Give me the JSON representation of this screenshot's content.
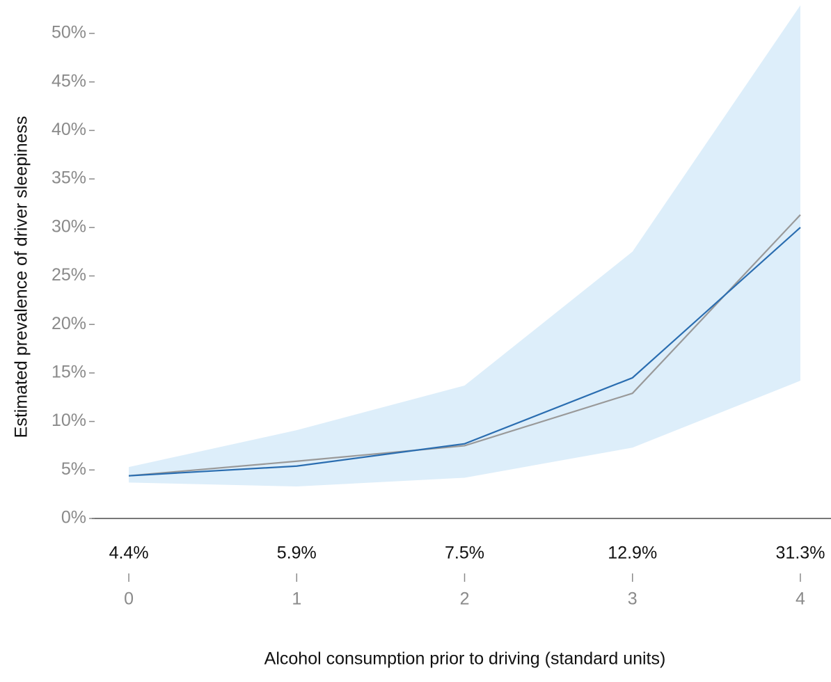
{
  "chart_data": {
    "type": "line",
    "y_label": "Estimated prevalence of driver sleepiness",
    "x_label": "Alcohol consumption prior to driving (standard units)",
    "x": [
      0,
      1,
      2,
      3,
      4
    ],
    "xlim": [
      -0.22,
      4.18
    ],
    "xticks": [
      0,
      1,
      2,
      3,
      4
    ],
    "ylim": [
      0,
      53
    ],
    "yticks": [
      {
        "value": 0,
        "label": "0%"
      },
      {
        "value": 5,
        "label": "5%"
      },
      {
        "value": 10,
        "label": "10%"
      },
      {
        "value": 15,
        "label": "15%"
      },
      {
        "value": 20,
        "label": "20%"
      },
      {
        "value": 25,
        "label": "25%"
      },
      {
        "value": 30,
        "label": "30%"
      },
      {
        "value": 35,
        "label": "35%"
      },
      {
        "value": 40,
        "label": "40%"
      },
      {
        "value": 45,
        "label": "45%"
      },
      {
        "value": 50,
        "label": "50%"
      }
    ],
    "band": {
      "color": "#ddeefa",
      "lower": [
        3.7,
        3.3,
        4.2,
        7.3,
        14.2
      ],
      "upper": [
        5.3,
        9.1,
        13.7,
        27.5,
        52.9
      ]
    },
    "series": [
      {
        "color": "#999999",
        "values": [
          4.4,
          5.9,
          7.5,
          12.9,
          31.3
        ],
        "value_labels": [
          "4.4%",
          "5.9%",
          "7.5%",
          "12.9%",
          "31.3%"
        ]
      },
      {
        "color": "#2a6db0",
        "values": [
          4.4,
          5.4,
          7.7,
          14.5,
          30.0
        ]
      }
    ]
  }
}
